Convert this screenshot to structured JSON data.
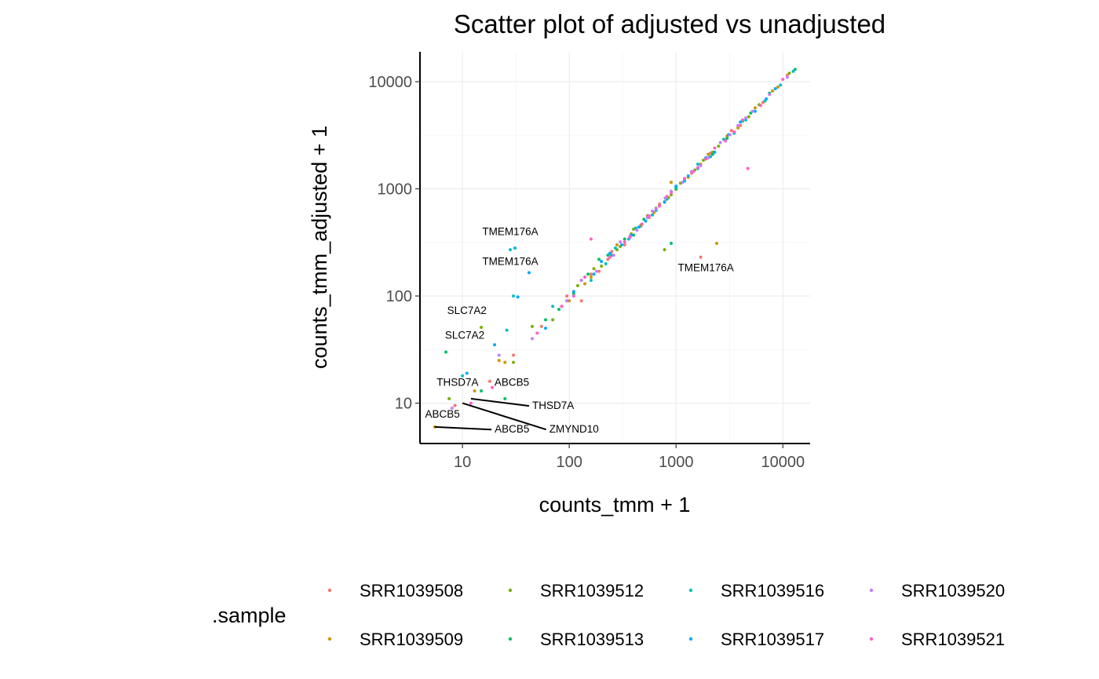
{
  "chart_data": {
    "type": "scatter",
    "title": "Scatter plot of adjusted vs unadjusted",
    "xlabel": "counts_tmm + 1",
    "ylabel": "counts_tmm_adjusted + 1",
    "x_scale": "log10",
    "y_scale": "log10",
    "xlim": [
      4,
      18000
    ],
    "ylim": [
      4.2,
      19000
    ],
    "x_ticks": [
      10,
      100,
      1000,
      10000
    ],
    "x_tick_labels": [
      "10",
      "100",
      "1000",
      "10000"
    ],
    "y_ticks": [
      10,
      100,
      1000,
      10000
    ],
    "y_tick_labels": [
      "10",
      "100",
      "1000",
      "10000"
    ],
    "grid": true,
    "legend_title": ".sample",
    "legend_position": "bottom",
    "series": [
      {
        "name": "SRR1039508",
        "color": "#F8766D",
        "points": [
          [
            8.5,
            9.5
          ],
          [
            18,
            16
          ],
          [
            1700,
            230
          ],
          [
            420,
            430
          ],
          [
            2800,
            2900
          ],
          [
            190,
            170
          ],
          [
            55,
            52
          ],
          [
            1000,
            1050
          ],
          [
            6500,
            6400
          ],
          [
            130,
            90
          ],
          [
            700,
            720
          ],
          [
            250,
            260
          ],
          [
            4000,
            3900
          ],
          [
            1400,
            1400
          ],
          [
            85,
            80
          ],
          [
            330,
            300
          ],
          [
            3300,
            3500
          ],
          [
            160,
            160
          ],
          [
            560,
            540
          ],
          [
            11000,
            11500
          ],
          [
            2100,
            2150
          ],
          [
            30,
            28
          ],
          [
            780,
            760
          ],
          [
            230,
            220
          ],
          [
            1200,
            1250
          ],
          [
            95,
            100
          ]
        ]
      },
      {
        "name": "SRR1039509",
        "color": "#CD9600",
        "points": [
          [
            5.5,
            6
          ],
          [
            13,
            13
          ],
          [
            2400,
            310
          ],
          [
            900,
            1150
          ],
          [
            85,
            80
          ],
          [
            470,
            450
          ],
          [
            3000,
            3100
          ],
          [
            160,
            150
          ],
          [
            1700,
            1700
          ],
          [
            700,
            700
          ],
          [
            8000,
            8200
          ],
          [
            25,
            24
          ],
          [
            380,
            380
          ],
          [
            240,
            230
          ],
          [
            1300,
            1280
          ],
          [
            5500,
            5700
          ],
          [
            100,
            90
          ],
          [
            620,
            600
          ],
          [
            3800,
            3700
          ],
          [
            22,
            25
          ],
          [
            1000,
            990
          ],
          [
            280,
            300
          ],
          [
            9000,
            8900
          ],
          [
            140,
            130
          ],
          [
            2000,
            2100
          ],
          [
            540,
            560
          ]
        ]
      },
      {
        "name": "SRR1039512",
        "color": "#7CAE00",
        "points": [
          [
            7.5,
            11
          ],
          [
            15,
            51
          ],
          [
            780,
            270
          ],
          [
            470,
            460
          ],
          [
            45,
            52
          ],
          [
            2500,
            2500
          ],
          [
            120,
            125
          ],
          [
            300,
            290
          ],
          [
            1500,
            1500
          ],
          [
            900,
            880
          ],
          [
            6000,
            6100
          ],
          [
            70,
            60
          ],
          [
            1100,
            1130
          ],
          [
            200,
            190
          ],
          [
            3500,
            3400
          ],
          [
            650,
            660
          ],
          [
            11500,
            12000
          ],
          [
            170,
            180
          ],
          [
            2200,
            2200
          ],
          [
            400,
            420
          ],
          [
            30,
            24
          ],
          [
            1800,
            1850
          ],
          [
            280,
            270
          ],
          [
            4800,
            4700
          ],
          [
            130,
            140
          ],
          [
            850,
            830
          ]
        ]
      },
      {
        "name": "SRR1039513",
        "color": "#00BE67",
        "points": [
          [
            7,
            30
          ],
          [
            15,
            13
          ],
          [
            25,
            11
          ],
          [
            900,
            310
          ],
          [
            60,
            60
          ],
          [
            190,
            220
          ],
          [
            400,
            370
          ],
          [
            2200,
            2100
          ],
          [
            1000,
            1000
          ],
          [
            110,
            105
          ],
          [
            5000,
            5100
          ],
          [
            330,
            340
          ],
          [
            1400,
            1450
          ],
          [
            700,
            690
          ],
          [
            250,
            240
          ],
          [
            13000,
            13000
          ],
          [
            3000,
            2950
          ],
          [
            150,
            160
          ],
          [
            500,
            520
          ],
          [
            1900,
            1900
          ],
          [
            80,
            75
          ],
          [
            7500,
            7800
          ],
          [
            800,
            820
          ],
          [
            230,
            240
          ],
          [
            4200,
            4300
          ],
          [
            1200,
            1190
          ]
        ]
      },
      {
        "name": "SRR1039516",
        "color": "#00BFC4",
        "points": [
          [
            28,
            270
          ],
          [
            10,
            18
          ],
          [
            26,
            48
          ],
          [
            30,
            100
          ],
          [
            360,
            340
          ],
          [
            1600,
            1700
          ],
          [
            3500,
            3300
          ],
          [
            140,
            150
          ],
          [
            820,
            800
          ],
          [
            2100,
            2000
          ],
          [
            6800,
            6600
          ],
          [
            550,
            560
          ],
          [
            95,
            90
          ],
          [
            270,
            280
          ],
          [
            1200,
            1180
          ],
          [
            4500,
            4400
          ],
          [
            220,
            200
          ],
          [
            12500,
            12500
          ],
          [
            700,
            690
          ],
          [
            160,
            140
          ],
          [
            2800,
            2900
          ],
          [
            1000,
            1030
          ],
          [
            420,
            430
          ],
          [
            9500,
            9300
          ],
          [
            600,
            570
          ],
          [
            70,
            80
          ]
        ]
      },
      {
        "name": "SRR1039517",
        "color": "#00A9FF",
        "points": [
          [
            31,
            280
          ],
          [
            20,
            35
          ],
          [
            42,
            165
          ],
          [
            11,
            19
          ],
          [
            33,
            98
          ],
          [
            170,
            160
          ],
          [
            780,
            750
          ],
          [
            2300,
            2200
          ],
          [
            450,
            440
          ],
          [
            1300,
            1320
          ],
          [
            5500,
            5300
          ],
          [
            310,
            300
          ],
          [
            3100,
            3200
          ],
          [
            1600,
            1550
          ],
          [
            240,
            250
          ],
          [
            8500,
            8600
          ],
          [
            650,
            630
          ],
          [
            110,
            110
          ],
          [
            1900,
            1950
          ],
          [
            520,
            500
          ],
          [
            4000,
            4200
          ],
          [
            380,
            370
          ],
          [
            200,
            210
          ],
          [
            1000,
            1060
          ],
          [
            60,
            50
          ],
          [
            7000,
            6900
          ]
        ]
      },
      {
        "name": "SRR1039520",
        "color": "#C77CFF",
        "points": [
          [
            8,
            9
          ],
          [
            22,
            28
          ],
          [
            540,
            540
          ],
          [
            1400,
            1450
          ],
          [
            260,
            240
          ],
          [
            3200,
            3200
          ],
          [
            180,
            170
          ],
          [
            900,
            950
          ],
          [
            650,
            650
          ],
          [
            2600,
            2700
          ],
          [
            5200,
            5300
          ],
          [
            45,
            40
          ],
          [
            300,
            320
          ],
          [
            1150,
            1150
          ],
          [
            430,
            410
          ],
          [
            7500,
            7600
          ],
          [
            95,
            90
          ],
          [
            2000,
            1950
          ],
          [
            790,
            820
          ],
          [
            3800,
            3900
          ],
          [
            130,
            140
          ],
          [
            11000,
            11000
          ],
          [
            1700,
            1650
          ],
          [
            370,
            350
          ],
          [
            600,
            620
          ],
          [
            4500,
            4600
          ]
        ]
      },
      {
        "name": "SRR1039521",
        "color": "#FF61CC",
        "points": [
          [
            12,
            10
          ],
          [
            19,
            14
          ],
          [
            4700,
            1550
          ],
          [
            160,
            340
          ],
          [
            1450,
            1450
          ],
          [
            330,
            320
          ],
          [
            2300,
            2400
          ],
          [
            110,
            100
          ],
          [
            900,
            920
          ],
          [
            3500,
            3400
          ],
          [
            50,
            45
          ],
          [
            700,
            690
          ],
          [
            1200,
            1250
          ],
          [
            6200,
            6000
          ],
          [
            240,
            230
          ],
          [
            1900,
            1900
          ],
          [
            480,
            470
          ],
          [
            10000,
            10500
          ],
          [
            85,
            80
          ],
          [
            2900,
            2800
          ],
          [
            560,
            560
          ],
          [
            140,
            150
          ],
          [
            4200,
            4400
          ],
          [
            370,
            360
          ],
          [
            820,
            850
          ],
          [
            1600,
            1580
          ]
        ]
      }
    ],
    "annotations": [
      {
        "text": "TMEM176A",
        "x": 28,
        "y": 270,
        "label_x": 28,
        "label_y": 370,
        "leader": false
      },
      {
        "text": "TMEM176A",
        "x": 31,
        "y": 280,
        "label_x": 28,
        "label_y": 195,
        "leader": false
      },
      {
        "text": "TMEM176A",
        "x": 1700,
        "y": 230,
        "label_x": 1900,
        "label_y": 170,
        "leader": false
      },
      {
        "text": "SLC7A2",
        "x": 15,
        "y": 51,
        "label_x": 11,
        "label_y": 68,
        "leader": false
      },
      {
        "text": "SLC7A2",
        "x": 7,
        "y": 30,
        "label_x": 10.5,
        "label_y": 40,
        "leader": false
      },
      {
        "text": "THSD7A",
        "x": 13,
        "y": 13,
        "label_x": 9,
        "label_y": 14.5,
        "leader": false
      },
      {
        "text": "ABCB5",
        "x": 18,
        "y": 16,
        "label_x": 29,
        "label_y": 14.5,
        "leader": false
      },
      {
        "text": "THSD7A",
        "x": 12,
        "y": 11,
        "label_x": 45,
        "label_y": 8.8,
        "leader": true
      },
      {
        "text": "ABCB5",
        "x": 6.5,
        "y": 7.8,
        "label_x": 6.5,
        "label_y": 7.3,
        "leader": false
      },
      {
        "text": "ABCB5",
        "x": 5.5,
        "y": 6,
        "label_x": 20,
        "label_y": 5.3,
        "leader": true
      },
      {
        "text": "ZMYND10",
        "x": 10,
        "y": 10,
        "label_x": 65,
        "label_y": 5.3,
        "leader": true
      }
    ]
  }
}
